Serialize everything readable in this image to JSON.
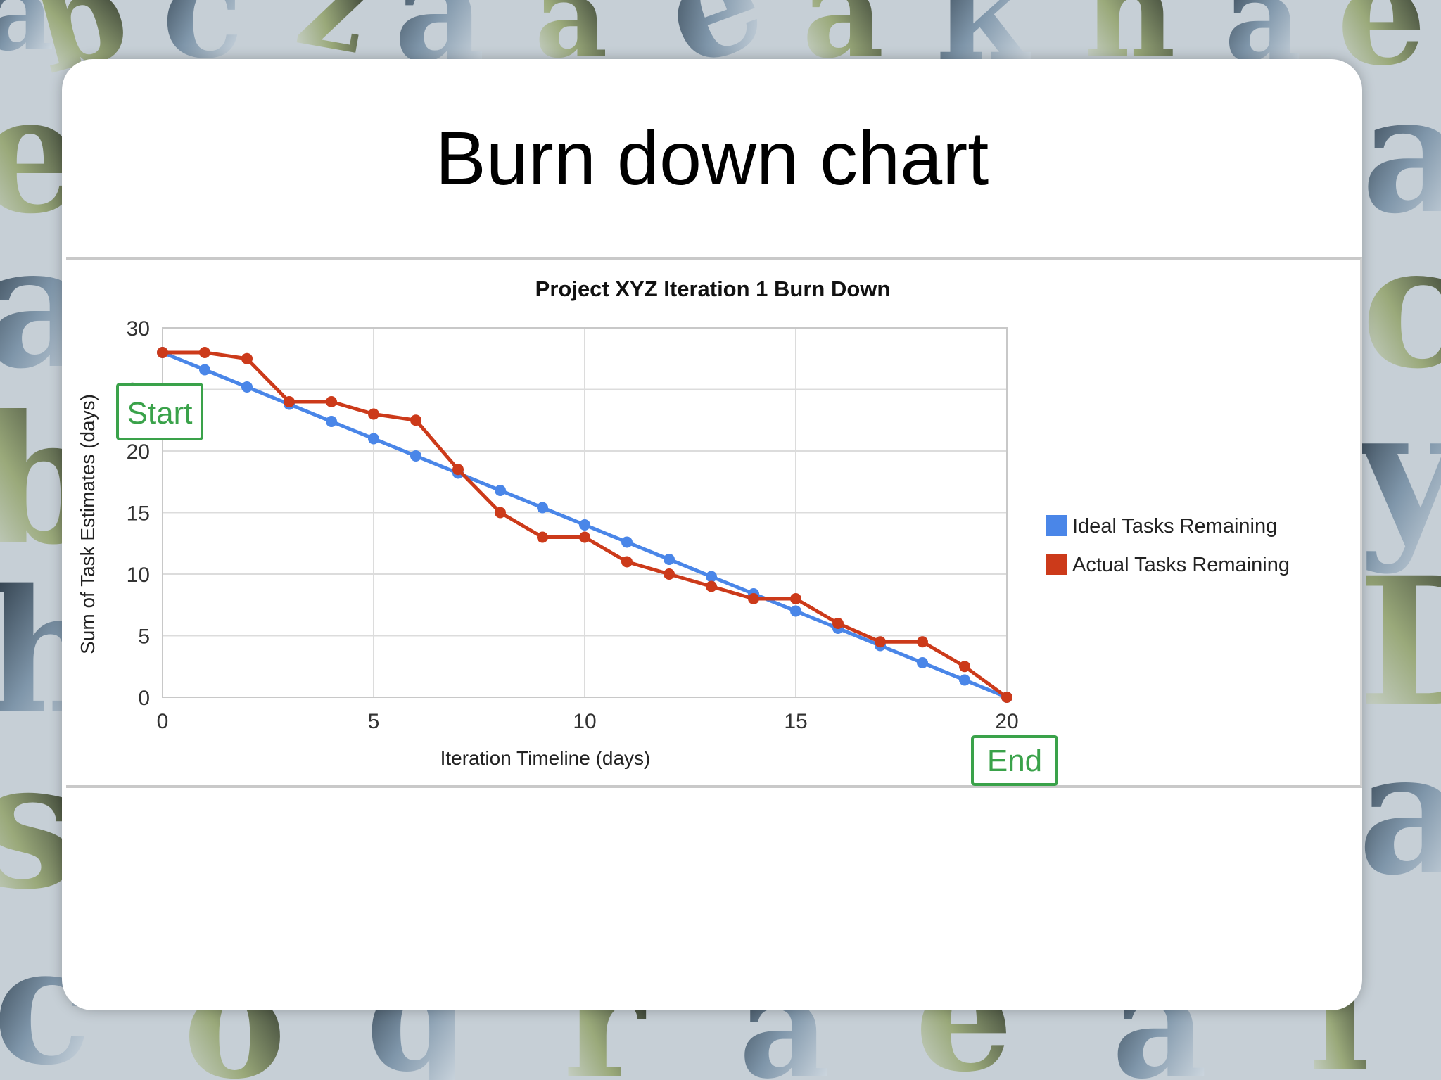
{
  "slide": {
    "title": "Burn down chart"
  },
  "colors": {
    "ideal": "#4a86e8",
    "actual": "#cc3a1a",
    "marker": "#3aa24a",
    "grid": "#dcdcdc"
  },
  "chart_data": {
    "type": "line",
    "title": "Project XYZ Iteration 1 Burn Down",
    "xlabel": "Iteration Timeline (days)",
    "ylabel": "Sum of Task Estimates (days)",
    "xlim": [
      0,
      20
    ],
    "ylim": [
      0,
      30
    ],
    "xticks": [
      0,
      5,
      10,
      15,
      20
    ],
    "yticks": [
      0,
      5,
      10,
      15,
      20,
      25,
      30
    ],
    "grid": true,
    "legend_position": "right",
    "x": [
      0,
      1,
      2,
      3,
      4,
      5,
      6,
      7,
      8,
      9,
      10,
      11,
      12,
      13,
      14,
      15,
      16,
      17,
      18,
      19,
      20
    ],
    "series": [
      {
        "name": "Ideal Tasks Remaining",
        "color": "#4a86e8",
        "values": [
          28,
          26.6,
          25.2,
          23.8,
          22.4,
          21,
          19.6,
          18.2,
          16.8,
          15.4,
          14,
          12.6,
          11.2,
          9.8,
          8.4,
          7,
          5.6,
          4.2,
          2.8,
          1.4,
          0
        ]
      },
      {
        "name": "Actual Tasks Remaining",
        "color": "#cc3a1a",
        "values": [
          28,
          28,
          27.5,
          24,
          24,
          23,
          22.5,
          18.5,
          15,
          13,
          13,
          11,
          10,
          9,
          8,
          8,
          6,
          4.5,
          4.5,
          2.5,
          0
        ]
      }
    ],
    "annotations": [
      {
        "text": "Start",
        "x": 0,
        "y": 28
      },
      {
        "text": "End",
        "x": 20,
        "y": 0
      }
    ]
  }
}
